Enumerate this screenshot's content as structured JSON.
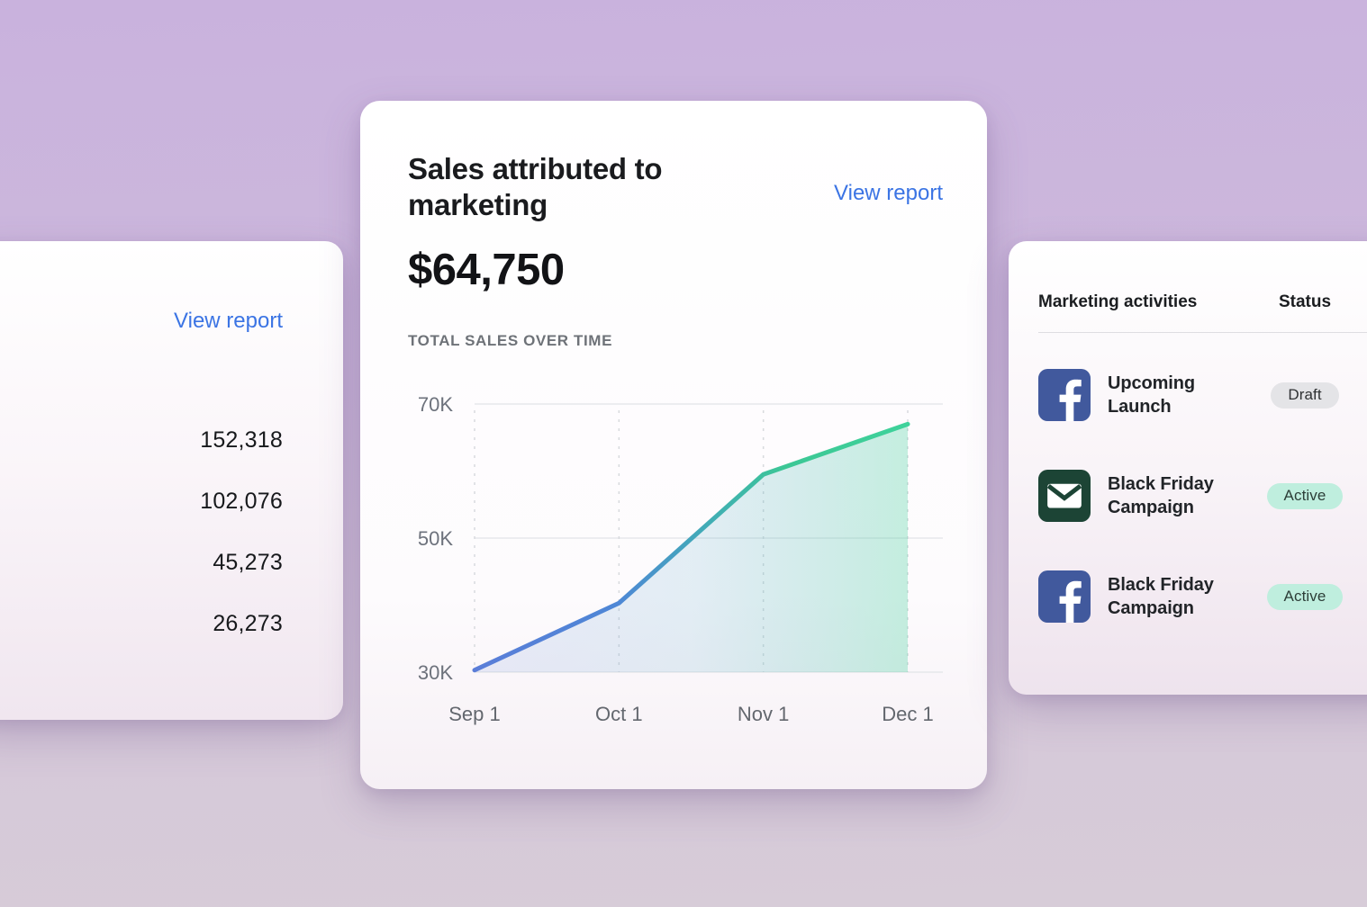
{
  "left_card": {
    "view_report_label": "View report",
    "values": [
      "152,318",
      "102,076",
      "45,273",
      "26,273"
    ]
  },
  "center_card": {
    "title": "Sales attributed to marketing",
    "view_report_label": "View report",
    "amount": "$64,750",
    "section_label": "TOTAL SALES OVER TIME"
  },
  "right_card": {
    "columns": [
      "Marketing activities",
      "Status"
    ],
    "rows": [
      {
        "icon": "facebook",
        "label": "Upcoming Launch",
        "status": "Draft",
        "status_type": "draft"
      },
      {
        "icon": "email",
        "label": "Black Friday Campaign",
        "status": "Active",
        "status_type": "active"
      },
      {
        "icon": "facebook",
        "label": "Black Friday Campaign",
        "status": "Active",
        "status_type": "active"
      }
    ]
  },
  "theme": {
    "link_blue": "#3b74e4",
    "facebook_blue": "#41599d",
    "email_green": "#1c4435",
    "badge_draft_bg": "#e4e4e7",
    "badge_active_bg": "#bfeede",
    "line_gradient_start": "#5a7dd8",
    "line_gradient_end": "#3ed29b",
    "background_top": "#c9b2dd",
    "background_bottom": "#d7ccd8"
  },
  "chart_data": {
    "type": "line",
    "title": "TOTAL SALES OVER TIME",
    "x": [
      "Sep 1",
      "Oct 1",
      "Nov 1",
      "Dec 1"
    ],
    "series": [
      {
        "name": "Total sales",
        "values": [
          30300,
          40300,
          59500,
          67000
        ]
      }
    ],
    "y_ticks": [
      {
        "value": 30000,
        "label": "30K"
      },
      {
        "value": 50000,
        "label": "50K"
      },
      {
        "value": 70000,
        "label": "70K"
      }
    ],
    "ylim": [
      30000,
      70000
    ],
    "xlabel": "",
    "ylabel": "",
    "grid": {
      "horizontal": "solid",
      "vertical": "dashed"
    },
    "legend": "none"
  }
}
